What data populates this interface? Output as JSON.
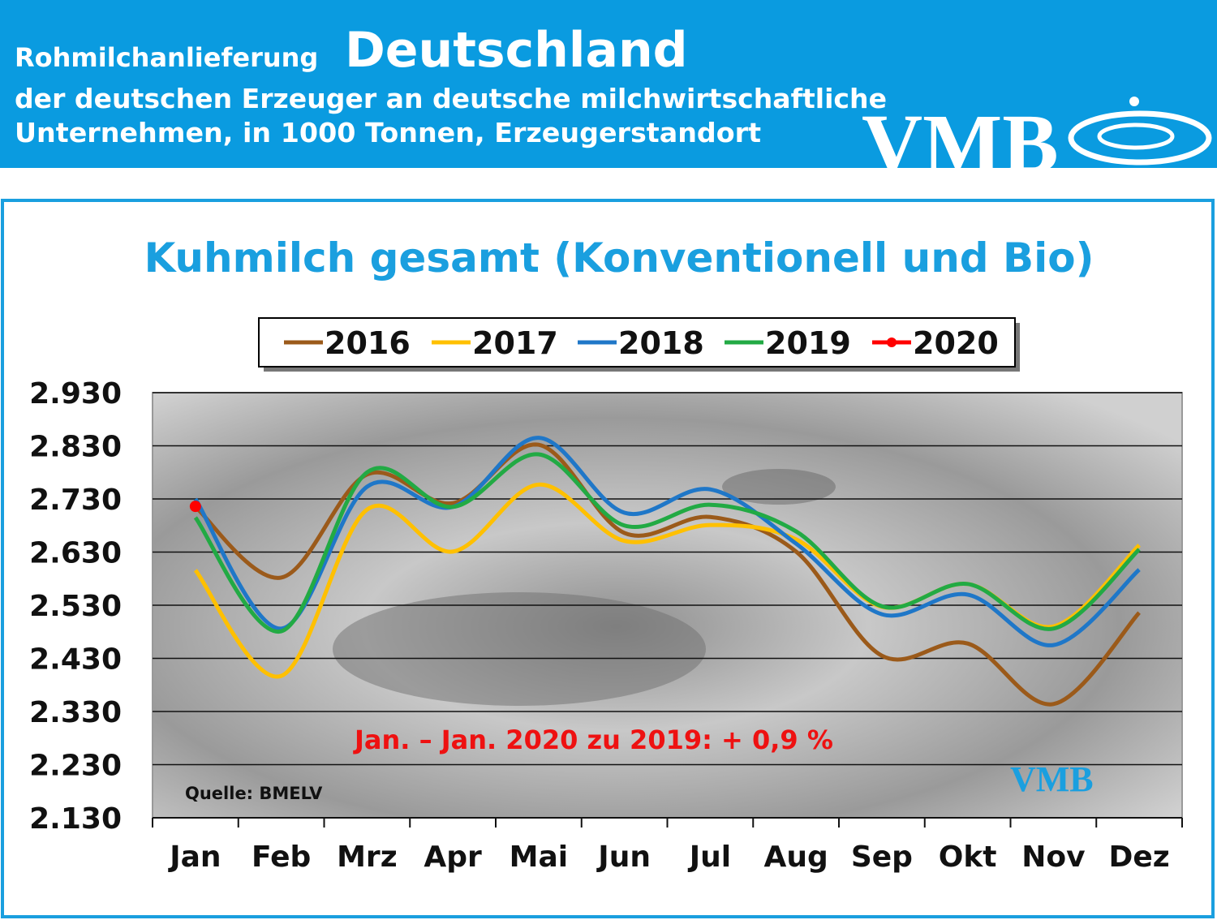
{
  "header": {
    "title_small": "Rohmilchanlieferung",
    "title_large": "Deutschland",
    "subtitle_line1": "der deutschen Erzeuger an deutsche milchwirtschaftliche",
    "subtitle_line2": "Unternehmen, in 1000 Tonnen, Erzeugerstandort",
    "logo": "VMB"
  },
  "chart_data": {
    "type": "line",
    "title": "Kuhmilch gesamt (Konventionell und Bio)",
    "categories": [
      "Jan",
      "Feb",
      "Mrz",
      "Apr",
      "Mai",
      "Jun",
      "Jul",
      "Aug",
      "Sep",
      "Okt",
      "Nov",
      "Dez"
    ],
    "series": [
      {
        "name": "2016",
        "color": "#9b5a1a",
        "values": [
          2715,
          2582,
          2776,
          2722,
          2832,
          2666,
          2696,
          2631,
          2435,
          2458,
          2344,
          2516
        ]
      },
      {
        "name": "2017",
        "color": "#ffc000",
        "values": [
          2596,
          2397,
          2710,
          2631,
          2757,
          2651,
          2681,
          2654,
          2527,
          2570,
          2490,
          2643
        ]
      },
      {
        "name": "2018",
        "color": "#1f77c8",
        "values": [
          2730,
          2486,
          2753,
          2715,
          2845,
          2704,
          2748,
          2646,
          2513,
          2550,
          2455,
          2597
        ]
      },
      {
        "name": "2019",
        "color": "#22aa44",
        "values": [
          2695,
          2481,
          2780,
          2715,
          2814,
          2680,
          2719,
          2669,
          2528,
          2570,
          2486,
          2635
        ]
      },
      {
        "name": "2020",
        "color": "#ff0000",
        "values": [
          2716,
          null,
          null,
          null,
          null,
          null,
          null,
          null,
          null,
          null,
          null,
          null
        ]
      }
    ],
    "ylim": [
      2130,
      2930
    ],
    "yticks": [
      {
        "value": 2130,
        "label": "2.130"
      },
      {
        "value": 2230,
        "label": "2.230"
      },
      {
        "value": 2330,
        "label": "2.330"
      },
      {
        "value": 2430,
        "label": "2.430"
      },
      {
        "value": 2530,
        "label": "2.530"
      },
      {
        "value": 2630,
        "label": "2.630"
      },
      {
        "value": 2730,
        "label": "2.730"
      },
      {
        "value": 2830,
        "label": "2.830"
      },
      {
        "value": 2930,
        "label": "2.930"
      }
    ],
    "grid": true,
    "legend": "top",
    "annotation": "Jan. – Jan.  2020 zu 2019: + 0,9 %",
    "source": "Quelle:  BMELV",
    "watermark": "VMB"
  }
}
